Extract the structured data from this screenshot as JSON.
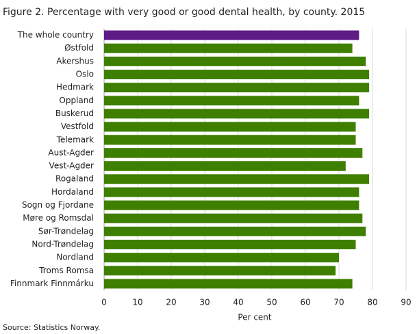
{
  "chart_data": {
    "type": "hbar",
    "title": "Figure 2. Percentage with very good or good dental health, by county. 2015",
    "categories": [
      "The whole country",
      "Østfold",
      "Akershus",
      "Oslo",
      "Hedmark",
      "Oppland",
      "Buskerud",
      "Vestfold",
      "Telemark",
      "Aust-Agder",
      "Vest-Agder",
      "Rogaland",
      "Hordaland",
      "Sogn og Fjordane",
      "Møre og Romsdal",
      "Sør-Trøndelag",
      "Nord-Trøndelag",
      "Nordland",
      "Troms Romsa",
      "Finnmark Finnmárku"
    ],
    "values": [
      76,
      74,
      78,
      79,
      79,
      76,
      79,
      75,
      75,
      77,
      72,
      79,
      76,
      76,
      77,
      78,
      75,
      70,
      69,
      74
    ],
    "colors": [
      "#5e1a85",
      "#3f7f00",
      "#3f7f00",
      "#3f7f00",
      "#3f7f00",
      "#3f7f00",
      "#3f7f00",
      "#3f7f00",
      "#3f7f00",
      "#3f7f00",
      "#3f7f00",
      "#3f7f00",
      "#3f7f00",
      "#3f7f00",
      "#3f7f00",
      "#3f7f00",
      "#3f7f00",
      "#3f7f00",
      "#3f7f00",
      "#3f7f00"
    ],
    "xlim": [
      0,
      90
    ],
    "xticks": [
      0,
      10,
      20,
      30,
      40,
      50,
      60,
      70,
      80,
      90
    ],
    "xlabel": "Per cent",
    "grid": true,
    "source": "Source: Statistics Norway."
  }
}
